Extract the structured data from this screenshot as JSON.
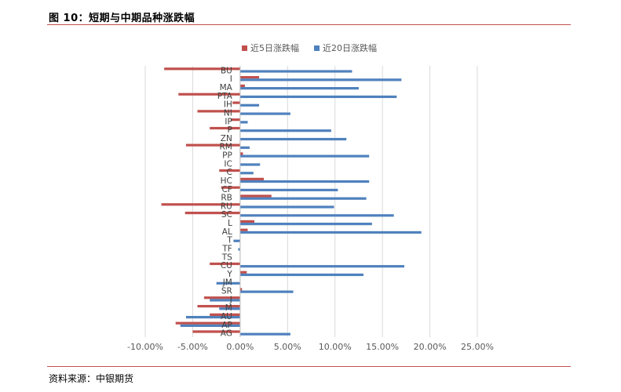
{
  "figure": {
    "title": "图 10：短期与中期品种涨跌幅",
    "source": "资料来源：中银期货"
  },
  "colors": {
    "rule": "#c0504d",
    "series5": "#c0504d",
    "series20": "#4f81bd",
    "grid": "#d9d9d9",
    "text": "#595959"
  },
  "chart_data": {
    "type": "bar",
    "orientation": "horizontal",
    "categories": [
      "BU",
      "I",
      "MA",
      "PTA",
      "IH",
      "NI",
      "IP",
      "P",
      "ZN",
      "RM",
      "PP",
      "IC",
      "C",
      "HC",
      "CF",
      "RB",
      "RU",
      "SC",
      "L",
      "AL",
      "T",
      "TF",
      "TS",
      "CU",
      "Y",
      "JM",
      "SR",
      "J",
      "M",
      "AU",
      "AP",
      "AG"
    ],
    "series": [
      {
        "name": "近5日涨跌幅",
        "color": "#c0504d",
        "values": [
          -8.0,
          2.0,
          0.5,
          -6.5,
          -0.8,
          -4.5,
          -1.0,
          -3.2,
          0.0,
          -5.7,
          0.3,
          0.0,
          -2.2,
          2.5,
          -2.0,
          3.3,
          -8.3,
          -5.8,
          1.5,
          0.8,
          0.0,
          0.0,
          0.0,
          -3.2,
          0.7,
          0.0,
          0.2,
          -3.8,
          -4.5,
          -3.2,
          -6.8,
          -5.0
        ]
      },
      {
        "name": "近20日涨跌幅",
        "color": "#4f81bd",
        "values": [
          11.8,
          17.0,
          12.5,
          16.5,
          2.0,
          5.3,
          0.8,
          9.6,
          11.2,
          1.0,
          13.6,
          2.1,
          1.4,
          13.6,
          10.3,
          13.3,
          9.9,
          16.2,
          13.9,
          19.1,
          -0.7,
          -0.2,
          0.0,
          17.3,
          13.0,
          -2.5,
          5.6,
          -3.2,
          -2.2,
          -5.7,
          -6.3,
          5.3
        ]
      }
    ],
    "x_ticks": [
      "-10.00%",
      "-5.00%",
      "0.00%",
      "5.00%",
      "10.00%",
      "15.00%",
      "20.00%",
      "25.00%"
    ],
    "xlim": [
      -10,
      25
    ],
    "xunit": "%",
    "grid": true,
    "legend_position": "top"
  }
}
